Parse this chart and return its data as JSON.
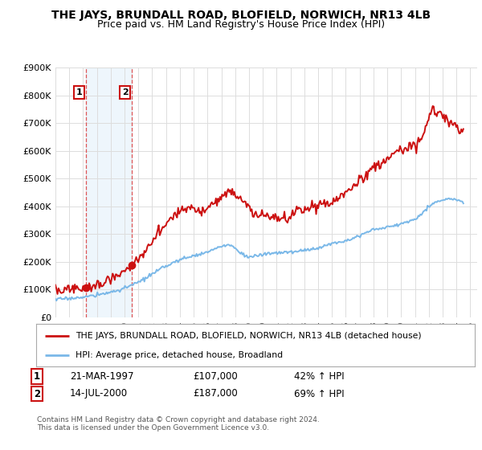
{
  "title": "THE JAYS, BRUNDALL ROAD, BLOFIELD, NORWICH, NR13 4LB",
  "subtitle": "Price paid vs. HM Land Registry's House Price Index (HPI)",
  "ylabel_ticks": [
    "£0",
    "£100K",
    "£200K",
    "£300K",
    "£400K",
    "£500K",
    "£600K",
    "£700K",
    "£800K",
    "£900K"
  ],
  "ylim": [
    0,
    900000
  ],
  "xlim_start": 1995.0,
  "xlim_end": 2025.5,
  "hpi_color": "#7ab8e8",
  "price_color": "#cc1111",
  "marker_color": "#cc1111",
  "vline_color": "#dd4444",
  "shade_color": "#d0e8f8",
  "sale1_x": 1997.22,
  "sale1_y": 107000,
  "sale1_label": "1",
  "sale1_date": "21-MAR-1997",
  "sale1_price": "£107,000",
  "sale1_hpi": "42% ↑ HPI",
  "sale2_x": 2000.54,
  "sale2_y": 187000,
  "sale2_label": "2",
  "sale2_date": "14-JUL-2000",
  "sale2_price": "£187,000",
  "sale2_hpi": "69% ↑ HPI",
  "legend_line1": "THE JAYS, BRUNDALL ROAD, BLOFIELD, NORWICH, NR13 4LB (detached house)",
  "legend_line2": "HPI: Average price, detached house, Broadland",
  "footer": "Contains HM Land Registry data © Crown copyright and database right 2024.\nThis data is licensed under the Open Government Licence v3.0.",
  "background_color": "#ffffff",
  "plot_bg_color": "#ffffff"
}
